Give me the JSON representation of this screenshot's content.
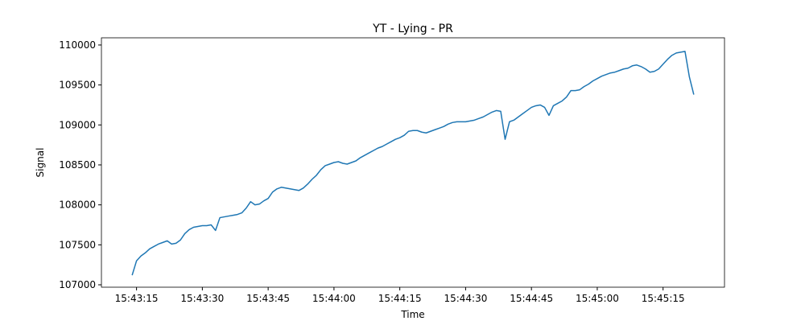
{
  "chart_data": {
    "type": "line",
    "title": "YT - Lying - PR",
    "xlabel": "Time",
    "ylabel": "Signal",
    "x": [
      "15:43:14",
      "15:43:15",
      "15:43:16",
      "15:43:17",
      "15:43:18",
      "15:43:19",
      "15:43:20",
      "15:43:21",
      "15:43:22",
      "15:43:23",
      "15:43:24",
      "15:43:25",
      "15:43:26",
      "15:43:27",
      "15:43:28",
      "15:43:29",
      "15:43:30",
      "15:43:31",
      "15:43:32",
      "15:43:33",
      "15:43:34",
      "15:43:35",
      "15:43:36",
      "15:43:37",
      "15:43:38",
      "15:43:39",
      "15:43:40",
      "15:43:41",
      "15:43:42",
      "15:43:43",
      "15:43:44",
      "15:43:45",
      "15:43:46",
      "15:43:47",
      "15:43:48",
      "15:43:49",
      "15:43:50",
      "15:43:51",
      "15:43:52",
      "15:43:53",
      "15:43:54",
      "15:43:55",
      "15:43:56",
      "15:43:57",
      "15:43:58",
      "15:43:59",
      "15:44:00",
      "15:44:01",
      "15:44:02",
      "15:44:03",
      "15:44:04",
      "15:44:05",
      "15:44:06",
      "15:44:07",
      "15:44:08",
      "15:44:09",
      "15:44:10",
      "15:44:11",
      "15:44:12",
      "15:44:13",
      "15:44:14",
      "15:44:15",
      "15:44:16",
      "15:44:17",
      "15:44:18",
      "15:44:19",
      "15:44:20",
      "15:44:21",
      "15:44:22",
      "15:44:23",
      "15:44:24",
      "15:44:25",
      "15:44:26",
      "15:44:27",
      "15:44:28",
      "15:44:29",
      "15:44:30",
      "15:44:31",
      "15:44:32",
      "15:44:33",
      "15:44:34",
      "15:44:35",
      "15:44:36",
      "15:44:37",
      "15:44:38",
      "15:44:39",
      "15:44:40",
      "15:44:41",
      "15:44:42",
      "15:44:43",
      "15:44:44",
      "15:44:45",
      "15:44:46",
      "15:44:47",
      "15:44:48",
      "15:44:49",
      "15:44:50",
      "15:44:51",
      "15:44:52",
      "15:44:53",
      "15:44:54",
      "15:44:55",
      "15:44:56",
      "15:44:57",
      "15:44:58",
      "15:44:59",
      "15:45:00",
      "15:45:01",
      "15:45:02",
      "15:45:03",
      "15:45:04",
      "15:45:05",
      "15:45:06",
      "15:45:07",
      "15:45:08",
      "15:45:09",
      "15:45:10",
      "15:45:11",
      "15:45:12",
      "15:45:13",
      "15:45:14",
      "15:45:15",
      "15:45:16",
      "15:45:17",
      "15:45:18",
      "15:45:19",
      "15:45:20",
      "15:45:21",
      "15:45:22"
    ],
    "series": [
      {
        "color": "#1f77b4",
        "values": [
          107120,
          107300,
          107360,
          107400,
          107450,
          107480,
          107510,
          107530,
          107550,
          107510,
          107520,
          107560,
          107640,
          107690,
          107720,
          107730,
          107740,
          107740,
          107750,
          107680,
          107840,
          107850,
          107860,
          107870,
          107880,
          107900,
          107960,
          108040,
          108000,
          108010,
          108050,
          108080,
          108160,
          108200,
          108220,
          108210,
          108200,
          108190,
          108180,
          108210,
          108260,
          108320,
          108370,
          108440,
          108490,
          108510,
          108530,
          108540,
          108520,
          108510,
          108530,
          108550,
          108590,
          108620,
          108650,
          108680,
          108710,
          108730,
          108760,
          108790,
          108820,
          108840,
          108870,
          108920,
          108930,
          108930,
          108910,
          108900,
          108920,
          108940,
          108960,
          108980,
          109010,
          109030,
          109040,
          109040,
          109040,
          109050,
          109060,
          109080,
          109100,
          109130,
          109160,
          109180,
          109170,
          108820,
          109040,
          109060,
          109100,
          109140,
          109180,
          109220,
          109240,
          109250,
          109220,
          109120,
          109240,
          109270,
          109300,
          109350,
          109430,
          109430,
          109440,
          109480,
          109510,
          109550,
          109580,
          109610,
          109630,
          109650,
          109660,
          109680,
          109700,
          109710,
          109740,
          109750,
          109730,
          109700,
          109660,
          109670,
          109700,
          109760,
          109820,
          109870,
          109900,
          109910,
          109920,
          109600,
          109380
        ]
      }
    ],
    "xlim": [
      "15:43:07",
      "15:45:29"
    ],
    "xticks": [
      "15:43:15",
      "15:43:30",
      "15:43:45",
      "15:44:00",
      "15:44:15",
      "15:44:30",
      "15:44:45",
      "15:45:00",
      "15:45:15"
    ],
    "ylim": [
      106970,
      110090
    ],
    "yticks": [
      107000,
      107500,
      108000,
      108500,
      109000,
      109500,
      110000
    ]
  }
}
